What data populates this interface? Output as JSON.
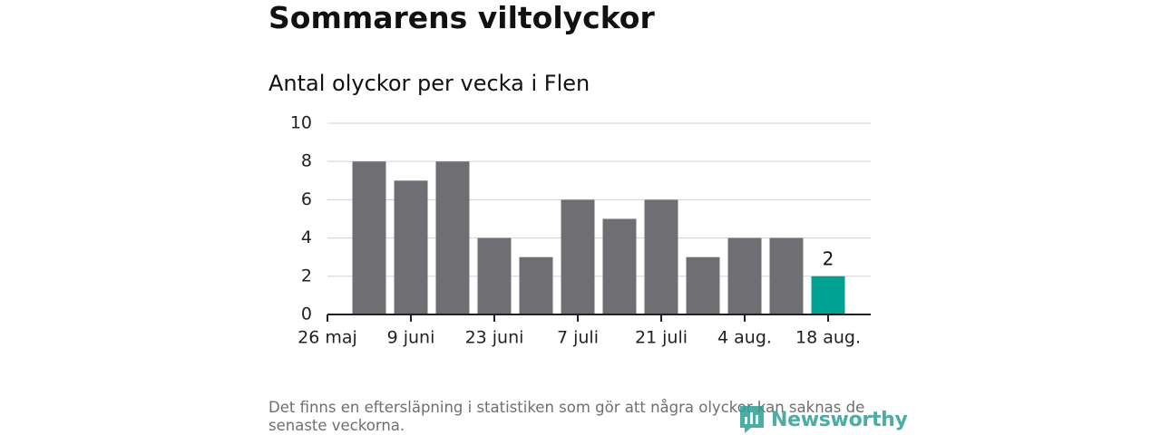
{
  "header": {
    "title": "Sommarens viltolyckor",
    "subtitle": "Antal olyckor per vecka i Flen"
  },
  "footnote": "Det finns en eftersläpning i statistiken som gör att några olyckor kan saknas de senaste veckorna.",
  "logo": {
    "text": "Newsworthy",
    "icon": "newsworthy-logo-icon"
  },
  "colors": {
    "bar": "#6f6e73",
    "highlight": "#00a293",
    "grid": "#d9d9d9",
    "axis": "#222222"
  },
  "chart_data": {
    "type": "bar",
    "title": "Antal olyckor per vecka i Flen",
    "xlabel": "",
    "ylabel": "",
    "x_tick_labels": [
      "26 maj",
      "9 juni",
      "23 juni",
      "7 juli",
      "21 juli",
      "4 aug.",
      "18 aug."
    ],
    "y_ticks": [
      0,
      2,
      4,
      6,
      8,
      10
    ],
    "ylim": [
      0,
      10
    ],
    "grid": true,
    "values": [
      8,
      7,
      8,
      4,
      3,
      6,
      5,
      6,
      3,
      4,
      4,
      2
    ],
    "highlight_index": 11,
    "highlight_label": "2"
  }
}
